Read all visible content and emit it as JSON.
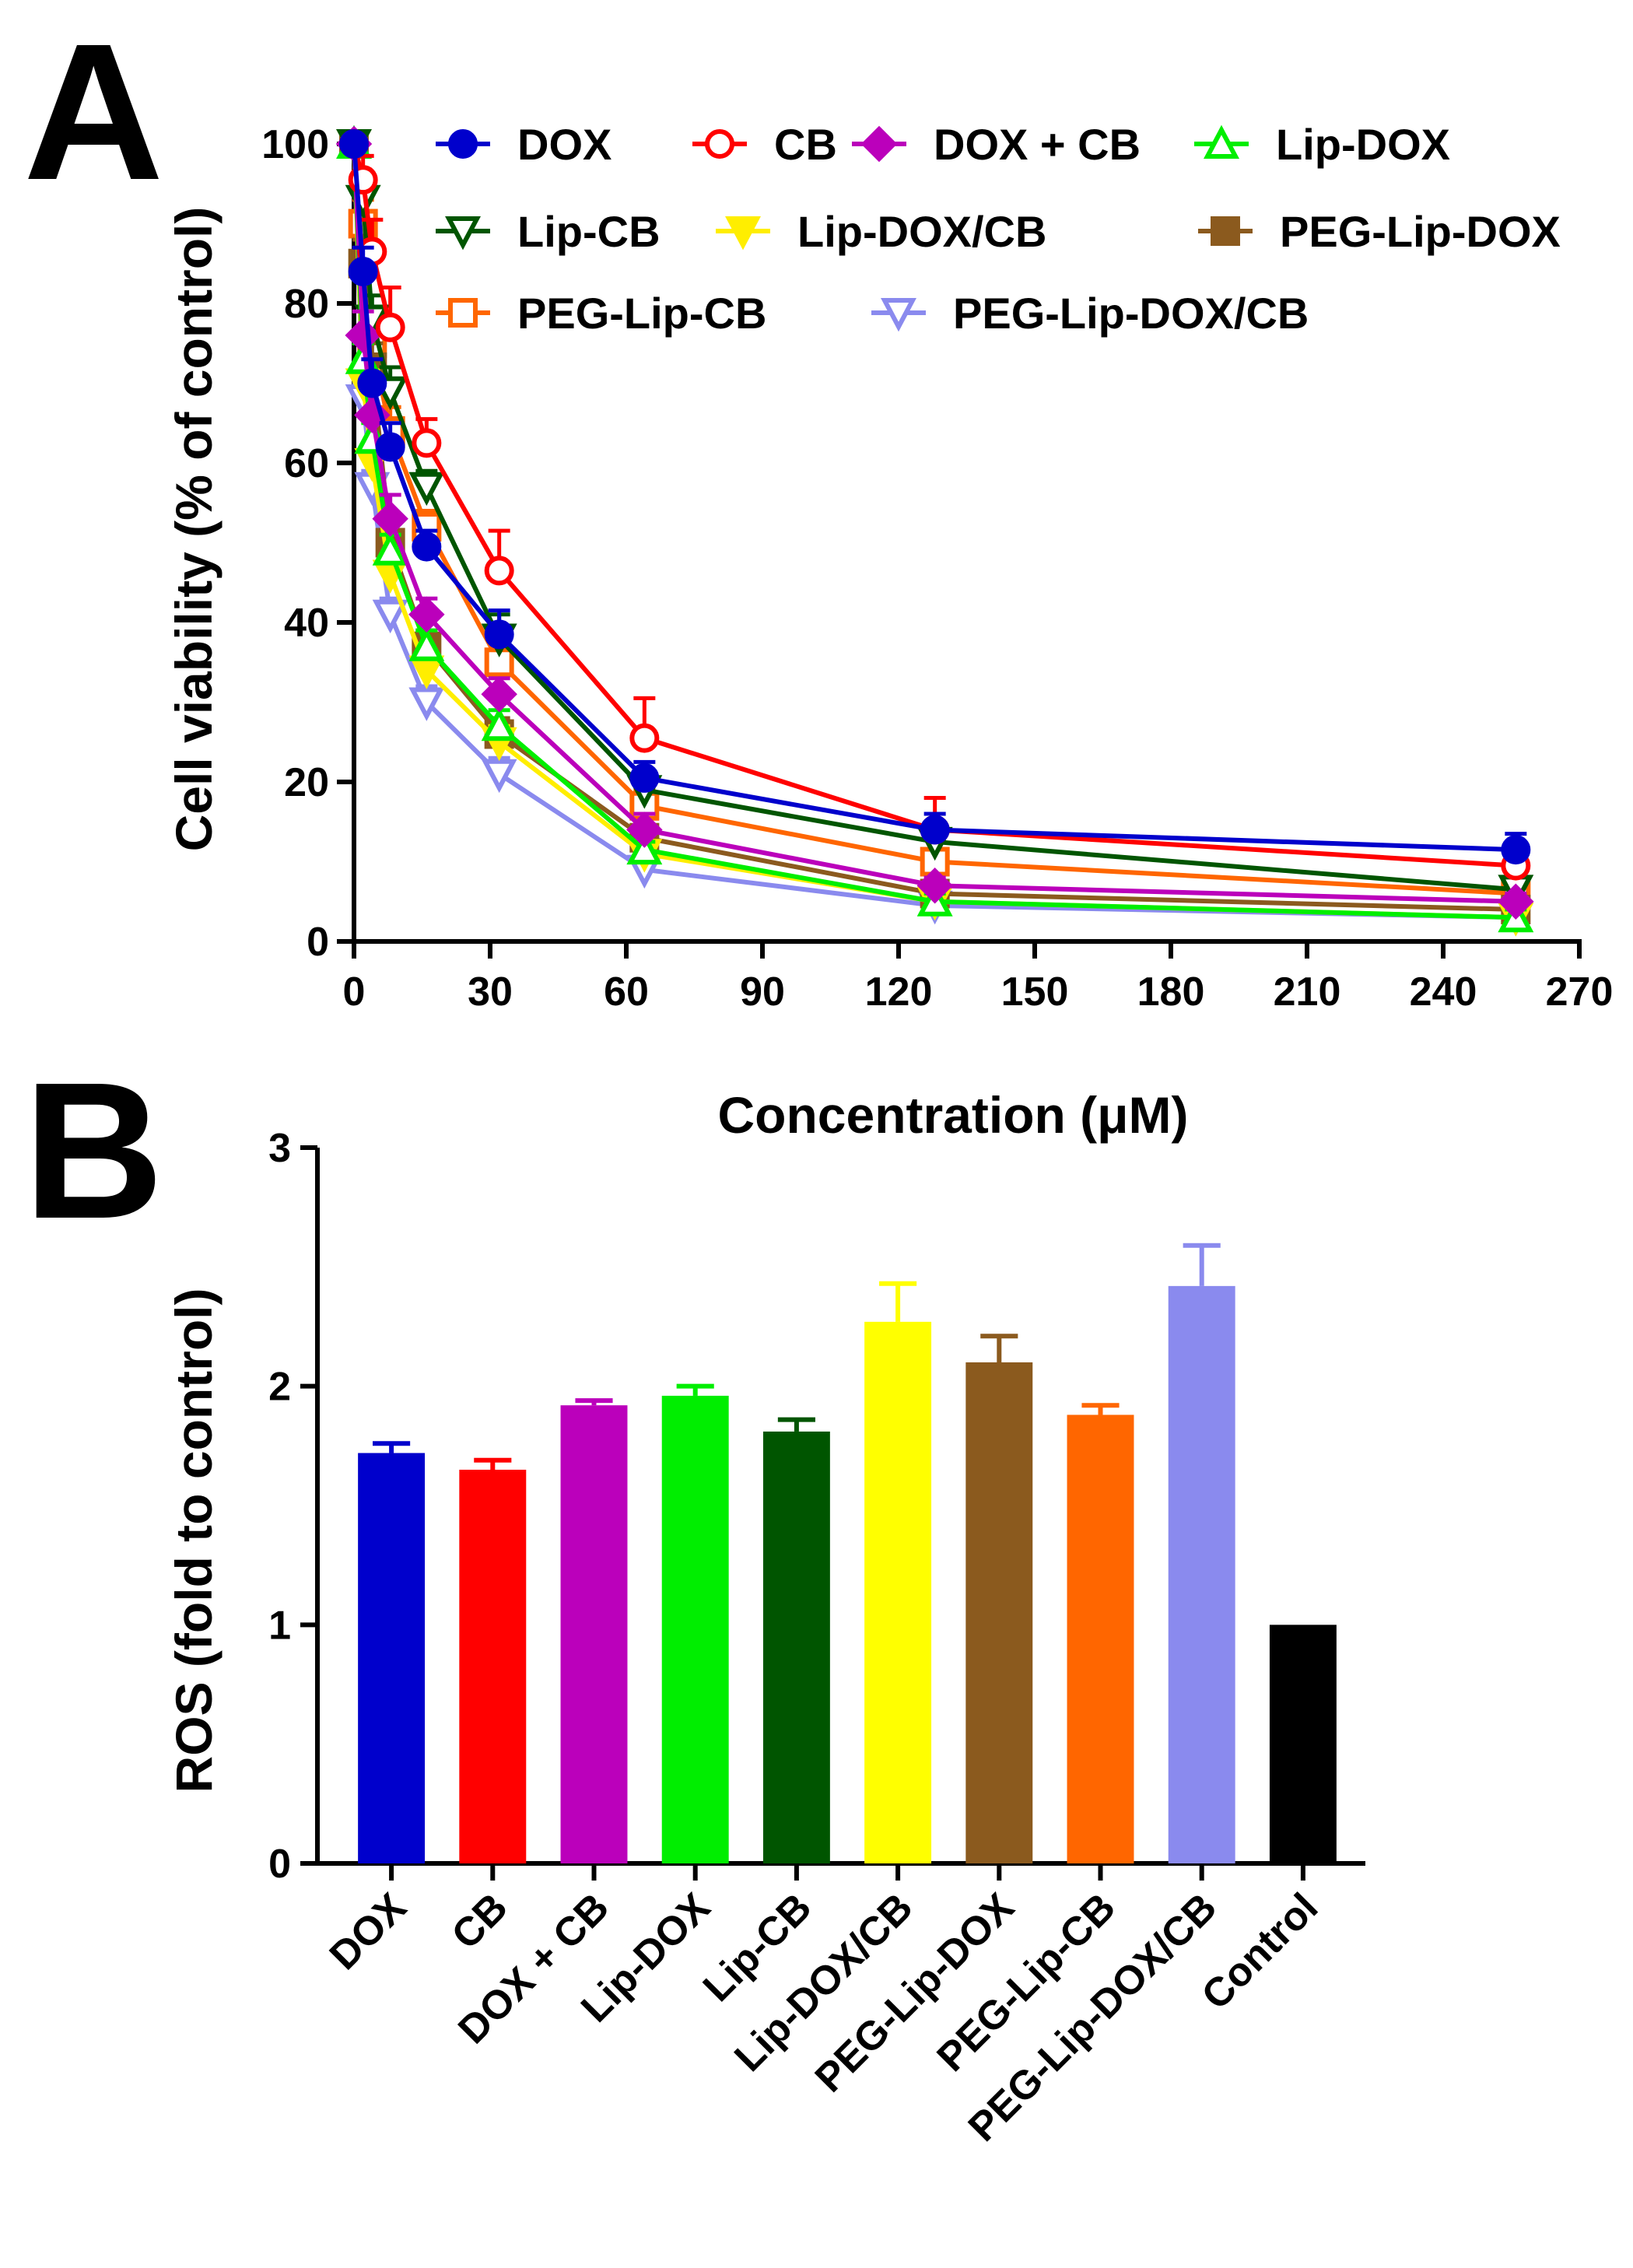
{
  "chart_data": [
    {
      "panel": "A",
      "type": "line",
      "xlabel": "Concentration (μM)",
      "ylabel": "Cell viability (% of control)",
      "xlim": [
        0,
        270
      ],
      "ylim": [
        0,
        100
      ],
      "xticks": [
        0,
        30,
        60,
        90,
        120,
        150,
        180,
        210,
        240,
        270
      ],
      "yticks": [
        0,
        20,
        40,
        60,
        80,
        100
      ],
      "x": [
        0,
        2,
        4,
        8,
        16,
        32,
        64,
        128,
        256
      ],
      "series": [
        {
          "name": "DOX",
          "color": "#0000cc",
          "marker": "circle-filled",
          "values": [
            100,
            84,
            70,
            62,
            49.5,
            38.5,
            20.5,
            14,
            11.5
          ],
          "errors": [
            1,
            3,
            3,
            3,
            2,
            3,
            2,
            2,
            2
          ]
        },
        {
          "name": "CB",
          "color": "#ff0000",
          "marker": "circle-open",
          "values": [
            100,
            95.5,
            86.5,
            77,
            62.5,
            46.5,
            25.5,
            14,
            9.5
          ],
          "errors": [
            1,
            3,
            4,
            5,
            3,
            5,
            5,
            4,
            2
          ]
        },
        {
          "name": "DOX + CB",
          "color": "#bb00bb",
          "marker": "diamond-filled",
          "values": [
            100,
            76,
            66,
            53,
            41,
            31,
            14,
            7,
            5
          ],
          "errors": [
            1,
            3,
            3,
            3,
            2,
            2,
            2,
            1,
            1
          ]
        },
        {
          "name": "Lip-DOX",
          "color": "#00ee00",
          "marker": "triangle-up-open",
          "values": [
            100,
            73,
            63,
            49,
            37,
            27,
            11.5,
            5,
            3
          ],
          "errors": [
            1,
            2,
            2,
            2,
            2,
            2,
            1,
            1,
            1
          ]
        },
        {
          "name": "Lip-CB",
          "color": "#005500",
          "marker": "triangle-down-open",
          "values": [
            100,
            93,
            78,
            69,
            57,
            38,
            19,
            12.5,
            6.5
          ],
          "errors": [
            1,
            3,
            3,
            3,
            2,
            3,
            2,
            2,
            1
          ]
        },
        {
          "name": "Lip-DOX/CB",
          "color": "#ffee00",
          "marker": "triangle-down-filled",
          "values": [
            100,
            70,
            60,
            46,
            34,
            25,
            11,
            5,
            3
          ],
          "errors": [
            1,
            2,
            2,
            2,
            2,
            2,
            1,
            1,
            1
          ]
        },
        {
          "name": "PEG-Lip-DOX",
          "color": "#8b5a1e",
          "marker": "square-filled",
          "values": [
            100,
            85,
            72,
            50,
            37,
            26,
            13,
            6,
            4
          ],
          "errors": [
            1,
            3,
            3,
            3,
            2,
            2,
            1,
            1,
            1
          ]
        },
        {
          "name": "PEG-Lip-CB",
          "color": "#ff6600",
          "marker": "square-open",
          "values": [
            100,
            90,
            75,
            64,
            52,
            35,
            17,
            10,
            6
          ],
          "errors": [
            1,
            3,
            3,
            3,
            2,
            3,
            2,
            1,
            1
          ]
        },
        {
          "name": "PEG-Lip-DOX/CB",
          "color": "#8a8aee",
          "marker": "triangle-down-open",
          "values": [
            100,
            68,
            57,
            41,
            30,
            21,
            9,
            4.5,
            3
          ],
          "errors": [
            1,
            2,
            2,
            2,
            2,
            2,
            1,
            1,
            1
          ]
        }
      ]
    },
    {
      "panel": "B",
      "type": "bar",
      "xlabel": "",
      "ylabel": "ROS (fold to control)",
      "ylim": [
        0,
        3
      ],
      "yticks": [
        0,
        1,
        2,
        3
      ],
      "categories": [
        "DOX",
        "CB",
        "DOX + CB",
        "Lip-DOX",
        "Lip-CB",
        "Lip-DOX/CB",
        "PEG-Lip-DOX",
        "PEG-Lip-CB",
        "PEG-Lip-DOX/CB",
        "Control"
      ],
      "values": [
        1.72,
        1.65,
        1.92,
        1.96,
        1.81,
        2.27,
        2.1,
        1.88,
        2.42,
        1.0
      ],
      "errors": [
        0.04,
        0.04,
        0.02,
        0.04,
        0.05,
        0.16,
        0.11,
        0.04,
        0.17,
        0
      ],
      "colors": [
        "#0000cc",
        "#ff0000",
        "#bb00bb",
        "#00ee00",
        "#005500",
        "#ffff00",
        "#8b5a1e",
        "#ff6600",
        "#8a8aee",
        "#000000"
      ]
    }
  ]
}
